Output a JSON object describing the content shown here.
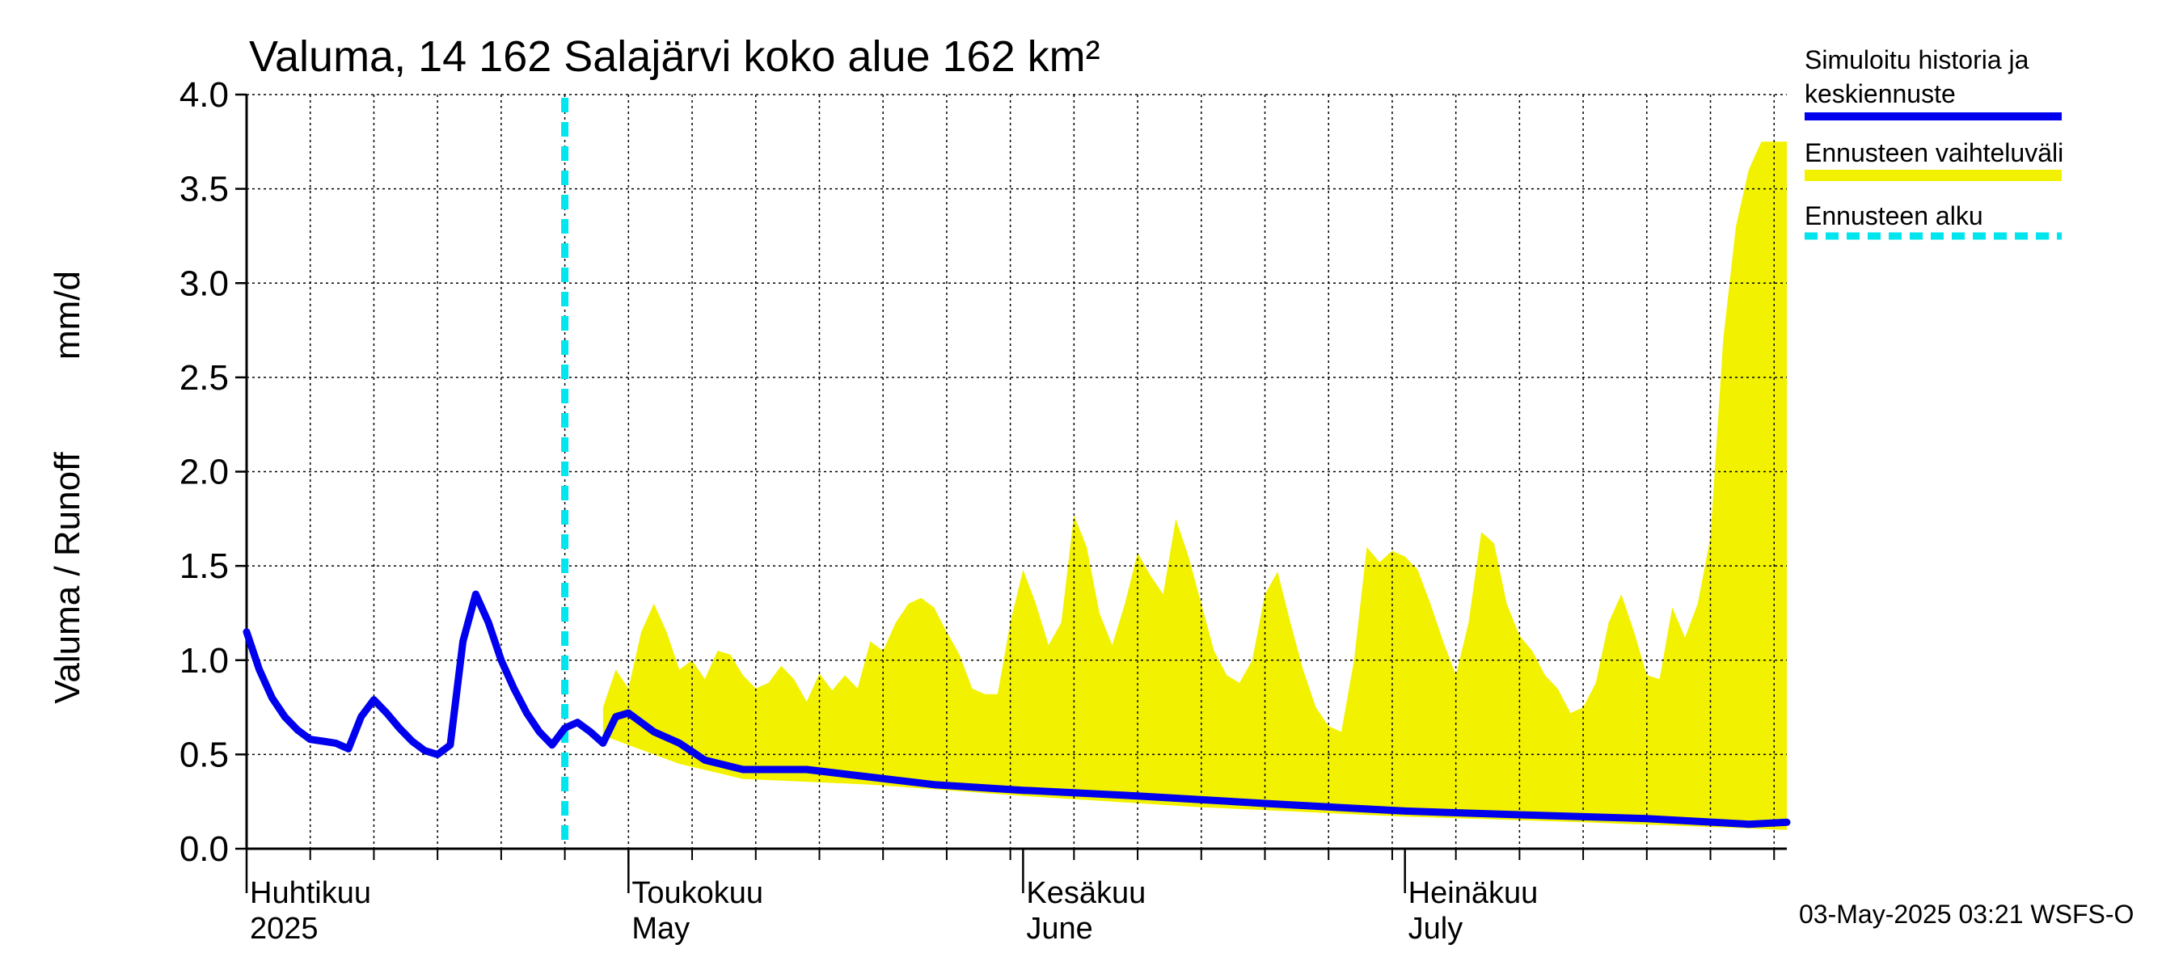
{
  "chart_data": {
    "type": "area",
    "title": "Valuma, 14 162 Salajärvi koko alue 162 km²",
    "ylabel_left": "Valuma / Runoff",
    "ylabel_unit": "mm/d",
    "ylim": [
      0.0,
      4.0
    ],
    "yticks": [
      "0.0",
      "0.5",
      "1.0",
      "1.5",
      "2.0",
      "2.5",
      "3.0",
      "3.5",
      "4.0"
    ],
    "ytick_values": [
      0.0,
      0.5,
      1.0,
      1.5,
      2.0,
      2.5,
      3.0,
      3.5,
      4.0
    ],
    "x_start": "2025-04-01",
    "x_end": "2025-07-31",
    "forecast_start": "2025-04-26",
    "month_labels": [
      {
        "date": "2025-04-01",
        "fi": "Huhtikuu",
        "en": "2025"
      },
      {
        "date": "2025-05-01",
        "fi": "Toukokuu",
        "en": "May"
      },
      {
        "date": "2025-06-01",
        "fi": "Kesäkuu",
        "en": "June"
      },
      {
        "date": "2025-07-01",
        "fi": "Heinäkuu",
        "en": "July"
      }
    ],
    "legend": [
      {
        "label": "Simuloitu historia ja",
        "label2": "keskiennuste",
        "color": "#0000ee",
        "style": "solid"
      },
      {
        "label": "Ennusteen vaihteluväli",
        "color": "#ffff00",
        "style": "solid"
      },
      {
        "label": "Ennusteen alku",
        "color": "#00e5ee",
        "style": "dashed"
      }
    ],
    "footer": "03-May-2025 03:21 WSFS-O",
    "colors": {
      "line": "#0000ee",
      "band": "#f2f200",
      "forecast_marker": "#00e5ee",
      "grid": "#000000"
    },
    "series": [
      {
        "name": "Simuloitu historia ja keskiennuste",
        "x": [
          "2025-04-01",
          "2025-04-02",
          "2025-04-03",
          "2025-04-04",
          "2025-04-05",
          "2025-04-06",
          "2025-04-07",
          "2025-04-08",
          "2025-04-09",
          "2025-04-10",
          "2025-04-11",
          "2025-04-12",
          "2025-04-13",
          "2025-04-14",
          "2025-04-15",
          "2025-04-16",
          "2025-04-17",
          "2025-04-18",
          "2025-04-19",
          "2025-04-20",
          "2025-04-21",
          "2025-04-22",
          "2025-04-23",
          "2025-04-24",
          "2025-04-25",
          "2025-04-26",
          "2025-04-27",
          "2025-04-28",
          "2025-04-29",
          "2025-04-30",
          "2025-05-01",
          "2025-05-03",
          "2025-05-05",
          "2025-05-07",
          "2025-05-10",
          "2025-05-15",
          "2025-05-20",
          "2025-05-25",
          "2025-06-01",
          "2025-06-10",
          "2025-06-20",
          "2025-07-01",
          "2025-07-10",
          "2025-07-20",
          "2025-07-28",
          "2025-07-31"
        ],
        "y": [
          1.15,
          0.95,
          0.8,
          0.7,
          0.63,
          0.58,
          0.57,
          0.56,
          0.53,
          0.7,
          0.79,
          0.72,
          0.64,
          0.57,
          0.52,
          0.5,
          0.55,
          1.1,
          1.35,
          1.2,
          1.0,
          0.85,
          0.72,
          0.62,
          0.55,
          0.64,
          0.67,
          0.62,
          0.56,
          0.7,
          0.72,
          0.62,
          0.56,
          0.47,
          0.42,
          0.42,
          0.38,
          0.34,
          0.31,
          0.28,
          0.24,
          0.2,
          0.18,
          0.16,
          0.13,
          0.14
        ]
      },
      {
        "name": "Ennusteen vaihteluväli (max)",
        "x": [
          "2025-04-29",
          "2025-04-30",
          "2025-05-01",
          "2025-05-02",
          "2025-05-03",
          "2025-05-04",
          "2025-05-05",
          "2025-05-06",
          "2025-05-07",
          "2025-05-08",
          "2025-05-09",
          "2025-05-10",
          "2025-05-11",
          "2025-05-12",
          "2025-05-13",
          "2025-05-14",
          "2025-05-15",
          "2025-05-16",
          "2025-05-17",
          "2025-05-18",
          "2025-05-19",
          "2025-05-20",
          "2025-05-21",
          "2025-05-22",
          "2025-05-23",
          "2025-05-24",
          "2025-05-25",
          "2025-05-26",
          "2025-05-27",
          "2025-05-28",
          "2025-05-29",
          "2025-05-30",
          "2025-05-31",
          "2025-06-01",
          "2025-06-02",
          "2025-06-03",
          "2025-06-04",
          "2025-06-05",
          "2025-06-06",
          "2025-06-07",
          "2025-06-08",
          "2025-06-09",
          "2025-06-10",
          "2025-06-11",
          "2025-06-12",
          "2025-06-13",
          "2025-06-14",
          "2025-06-15",
          "2025-06-16",
          "2025-06-17",
          "2025-06-18",
          "2025-06-19",
          "2025-06-20",
          "2025-06-21",
          "2025-06-22",
          "2025-06-23",
          "2025-06-24",
          "2025-06-25",
          "2025-06-26",
          "2025-06-27",
          "2025-06-28",
          "2025-06-29",
          "2025-06-30",
          "2025-07-01",
          "2025-07-02",
          "2025-07-03",
          "2025-07-04",
          "2025-07-05",
          "2025-07-06",
          "2025-07-07",
          "2025-07-08",
          "2025-07-09",
          "2025-07-10",
          "2025-07-11",
          "2025-07-12",
          "2025-07-13",
          "2025-07-14",
          "2025-07-15",
          "2025-07-16",
          "2025-07-17",
          "2025-07-18",
          "2025-07-19",
          "2025-07-20",
          "2025-07-21",
          "2025-07-22",
          "2025-07-23",
          "2025-07-24",
          "2025-07-25",
          "2025-07-26",
          "2025-07-27",
          "2025-07-28",
          "2025-07-29",
          "2025-07-30",
          "2025-07-31"
        ],
        "y": [
          0.75,
          0.95,
          0.85,
          1.15,
          1.3,
          1.15,
          0.95,
          1.0,
          0.9,
          1.05,
          1.03,
          0.92,
          0.85,
          0.88,
          0.97,
          0.9,
          0.78,
          0.93,
          0.84,
          0.92,
          0.85,
          1.1,
          1.05,
          1.2,
          1.3,
          1.33,
          1.28,
          1.15,
          1.03,
          0.85,
          0.82,
          0.82,
          1.2,
          1.48,
          1.3,
          1.08,
          1.2,
          1.77,
          1.6,
          1.25,
          1.08,
          1.3,
          1.57,
          1.45,
          1.35,
          1.75,
          1.55,
          1.3,
          1.05,
          0.92,
          0.88,
          1.0,
          1.35,
          1.47,
          1.2,
          0.95,
          0.75,
          0.65,
          0.62,
          1.0,
          1.6,
          1.52,
          1.58,
          1.55,
          1.48,
          1.3,
          1.1,
          0.92,
          1.2,
          1.68,
          1.62,
          1.3,
          1.13,
          1.05,
          0.92,
          0.85,
          0.72,
          0.75,
          0.88,
          1.2,
          1.35,
          1.15,
          0.92,
          0.9,
          1.28,
          1.12,
          1.3,
          1.65,
          2.7,
          3.3,
          3.6,
          3.75,
          3.75,
          3.75
        ]
      },
      {
        "name": "Ennusteen vaihteluväli (min)",
        "x": [
          "2025-04-29",
          "2025-05-01",
          "2025-05-05",
          "2025-05-10",
          "2025-05-20",
          "2025-06-01",
          "2025-06-15",
          "2025-07-01",
          "2025-07-15",
          "2025-07-31"
        ],
        "y": [
          0.6,
          0.55,
          0.45,
          0.37,
          0.34,
          0.28,
          0.22,
          0.17,
          0.14,
          0.1
        ]
      }
    ]
  }
}
